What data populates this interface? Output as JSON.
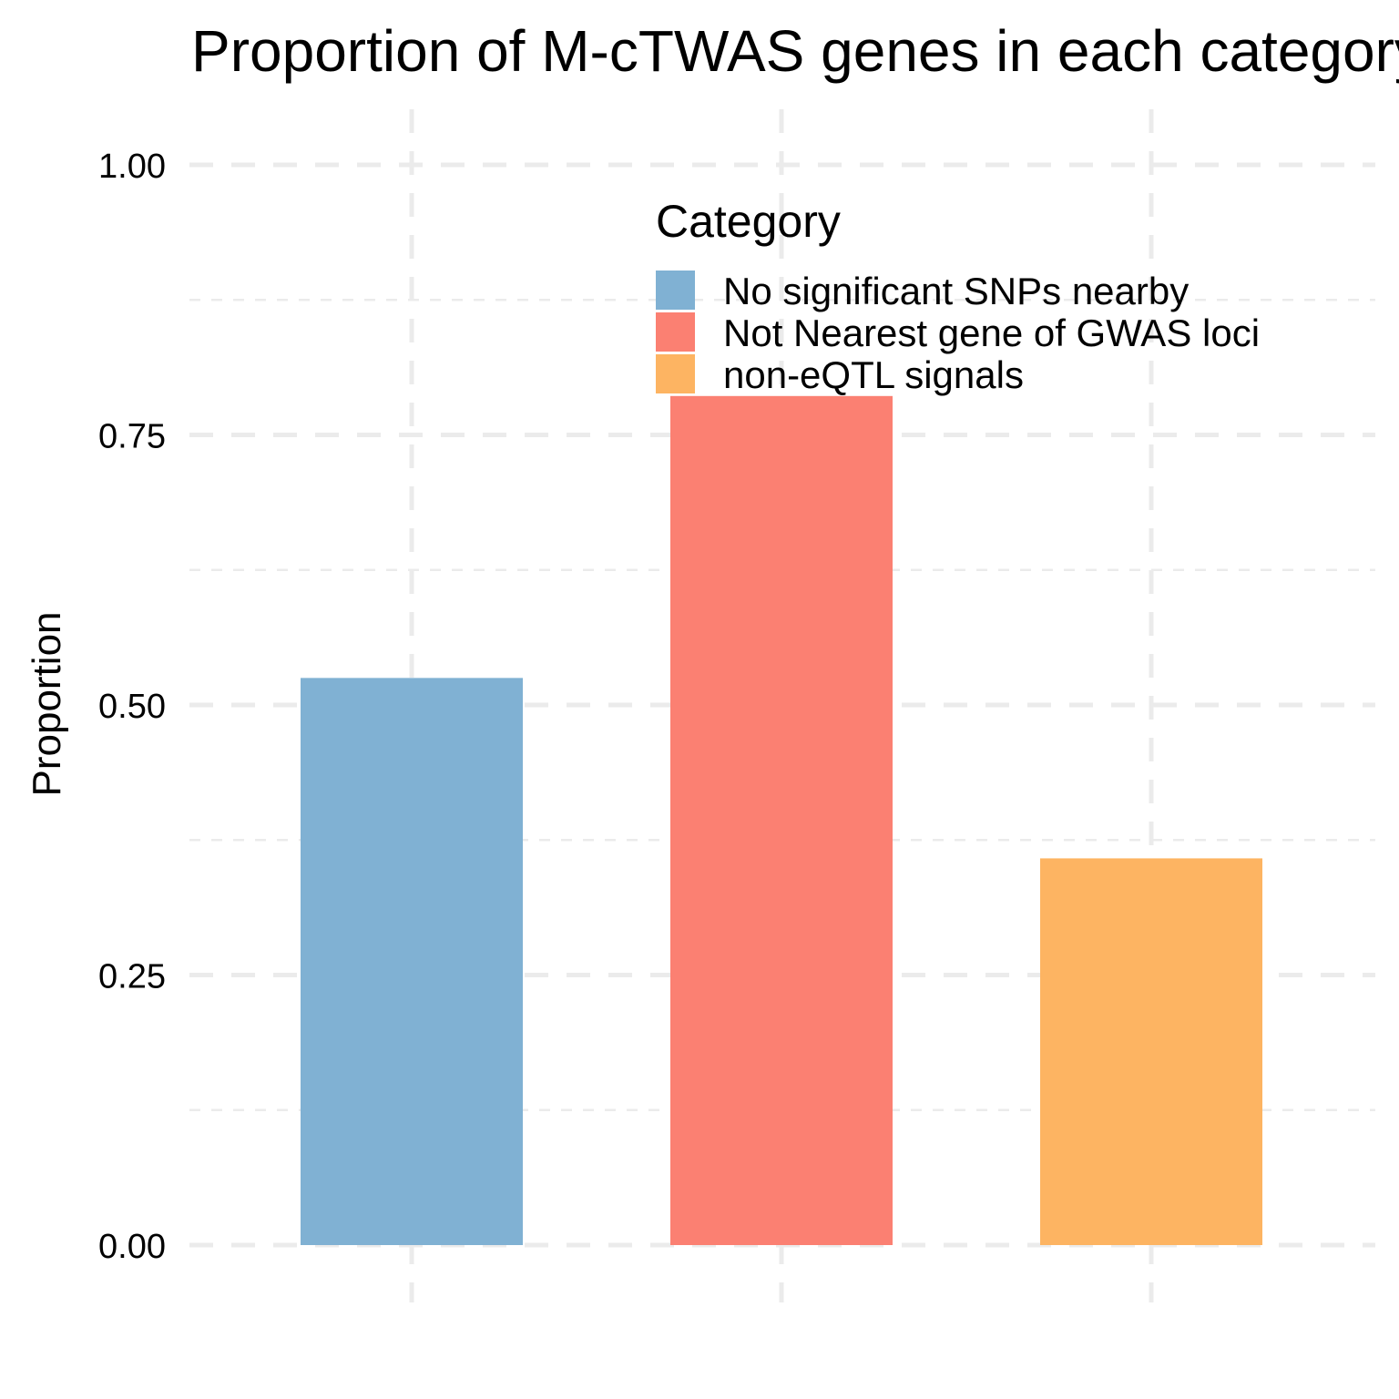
{
  "chart_data": {
    "type": "bar",
    "title": "Proportion of M-cTWAS genes in each category",
    "xlabel": "",
    "ylabel": "Proportion",
    "categories": [
      "No significant SNPs nearby",
      "Not Nearest gene of GWAS loci",
      "non-eQTL signals"
    ],
    "values": [
      0.525,
      0.786,
      0.358
    ],
    "colors": [
      "#80b1d3",
      "#fb8072",
      "#fdb462"
    ],
    "ylim": [
      0,
      1.05
    ],
    "yticks": [
      0.0,
      0.25,
      0.5,
      0.75,
      1.0
    ],
    "ytick_labels": [
      "0.00",
      "0.25",
      "0.50",
      "0.75",
      "1.00"
    ],
    "grid": true,
    "legend": {
      "title": "Category",
      "placement": "top-center, inside plot",
      "entries": [
        "No significant SNPs nearby",
        "Not Nearest gene of GWAS loci",
        "non-eQTL signals"
      ]
    }
  }
}
